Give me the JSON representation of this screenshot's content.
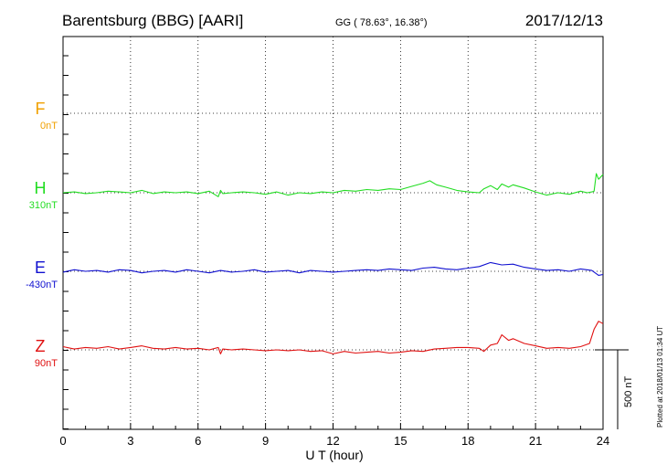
{
  "header": {
    "station": "Barentsburg (BBG)  [AARI]",
    "coords": "GG ( 78.63°,  16.38°)",
    "date": "2017/12/13"
  },
  "side_note": "Plotted at 2018/01/13 01:34 UT",
  "scale_bar_label": "500 nT",
  "colors": {
    "F": "#f0a000",
    "H": "#22dd22",
    "E": "#1010d0",
    "Z": "#e01010",
    "axis": "#000000",
    "grid": "#000000"
  },
  "chart_data": {
    "type": "line",
    "xlabel": "U T (hour)",
    "xlim": [
      0,
      24
    ],
    "xticks": [
      "0",
      "3",
      "6",
      "9",
      "12",
      "15",
      "18",
      "21",
      "24"
    ],
    "grid": true,
    "series": [
      {
        "name": "F",
        "baseline_label": "0nT",
        "x": [],
        "y": []
      },
      {
        "name": "H",
        "baseline_label": "310nT",
        "x": [
          0,
          0.5,
          1.0,
          1.5,
          2.0,
          2.5,
          3.0,
          3.5,
          4.0,
          4.5,
          5.0,
          5.5,
          6.0,
          6.5,
          6.9,
          7.0,
          7.1,
          7.5,
          8.0,
          8.5,
          9.0,
          9.5,
          10.0,
          10.5,
          11.0,
          11.5,
          12.0,
          12.5,
          13.0,
          13.5,
          14.0,
          14.5,
          15.0,
          15.5,
          16.0,
          16.3,
          16.6,
          17.0,
          17.5,
          18.0,
          18.5,
          18.7,
          19.0,
          19.3,
          19.5,
          19.8,
          20.0,
          20.5,
          21.0,
          21.5,
          22.0,
          22.5,
          23.0,
          23.3,
          23.5,
          23.6,
          23.7,
          23.8,
          24.0
        ],
        "y": [
          0,
          5,
          -5,
          0,
          10,
          5,
          0,
          15,
          -5,
          5,
          0,
          5,
          -5,
          10,
          -25,
          15,
          -5,
          0,
          5,
          0,
          -10,
          5,
          -15,
          0,
          -5,
          5,
          0,
          15,
          10,
          20,
          15,
          25,
          20,
          40,
          60,
          75,
          50,
          35,
          15,
          5,
          0,
          25,
          45,
          20,
          55,
          35,
          50,
          30,
          5,
          -15,
          0,
          -10,
          10,
          0,
          5,
          10,
          120,
          85,
          115
        ]
      },
      {
        "name": "E",
        "baseline_label": "-430nT",
        "x": [
          0,
          0.5,
          1.0,
          1.5,
          2.0,
          2.5,
          3.0,
          3.5,
          4.0,
          4.5,
          5.0,
          5.5,
          6.0,
          6.5,
          7.0,
          7.5,
          8.0,
          8.5,
          9.0,
          9.5,
          10.0,
          10.5,
          11.0,
          11.5,
          12.0,
          12.5,
          13.0,
          13.5,
          14.0,
          14.5,
          15.0,
          15.5,
          16.0,
          16.5,
          17.0,
          17.5,
          18.0,
          18.5,
          19.0,
          19.5,
          20.0,
          20.5,
          21.0,
          21.5,
          22.0,
          22.5,
          23.0,
          23.5,
          23.8,
          24.0
        ],
        "y": [
          -5,
          10,
          0,
          5,
          -5,
          10,
          5,
          -10,
          0,
          5,
          -5,
          10,
          0,
          -10,
          5,
          -5,
          0,
          10,
          -5,
          0,
          5,
          -10,
          5,
          0,
          -5,
          0,
          5,
          10,
          5,
          15,
          10,
          5,
          20,
          25,
          15,
          10,
          20,
          30,
          55,
          40,
          45,
          25,
          15,
          5,
          10,
          0,
          15,
          5,
          -25,
          -20
        ]
      },
      {
        "name": "Z",
        "baseline_label": "90nT",
        "x": [
          0,
          0.5,
          1.0,
          1.5,
          2.0,
          2.5,
          3.0,
          3.5,
          4.0,
          4.5,
          5.0,
          5.5,
          6.0,
          6.5,
          6.9,
          7.0,
          7.1,
          7.5,
          8.0,
          8.5,
          9.0,
          9.5,
          10.0,
          10.5,
          11.0,
          11.5,
          12.0,
          12.5,
          13.0,
          13.5,
          14.0,
          14.5,
          15.0,
          15.5,
          16.0,
          16.5,
          17.0,
          17.5,
          18.0,
          18.5,
          18.7,
          19.0,
          19.3,
          19.5,
          19.8,
          20.0,
          20.5,
          21.0,
          21.5,
          22.0,
          22.5,
          23.0,
          23.4,
          23.6,
          23.8,
          24.0
        ],
        "y": [
          20,
          5,
          15,
          10,
          20,
          5,
          15,
          25,
          10,
          5,
          15,
          5,
          10,
          0,
          15,
          -25,
          5,
          0,
          5,
          0,
          -5,
          0,
          -5,
          0,
          -10,
          -5,
          -25,
          -10,
          -20,
          -15,
          -10,
          -20,
          -15,
          -5,
          -10,
          5,
          10,
          15,
          15,
          10,
          -10,
          30,
          40,
          95,
          60,
          70,
          40,
          25,
          10,
          15,
          10,
          20,
          40,
          130,
          180,
          165
        ]
      }
    ]
  }
}
